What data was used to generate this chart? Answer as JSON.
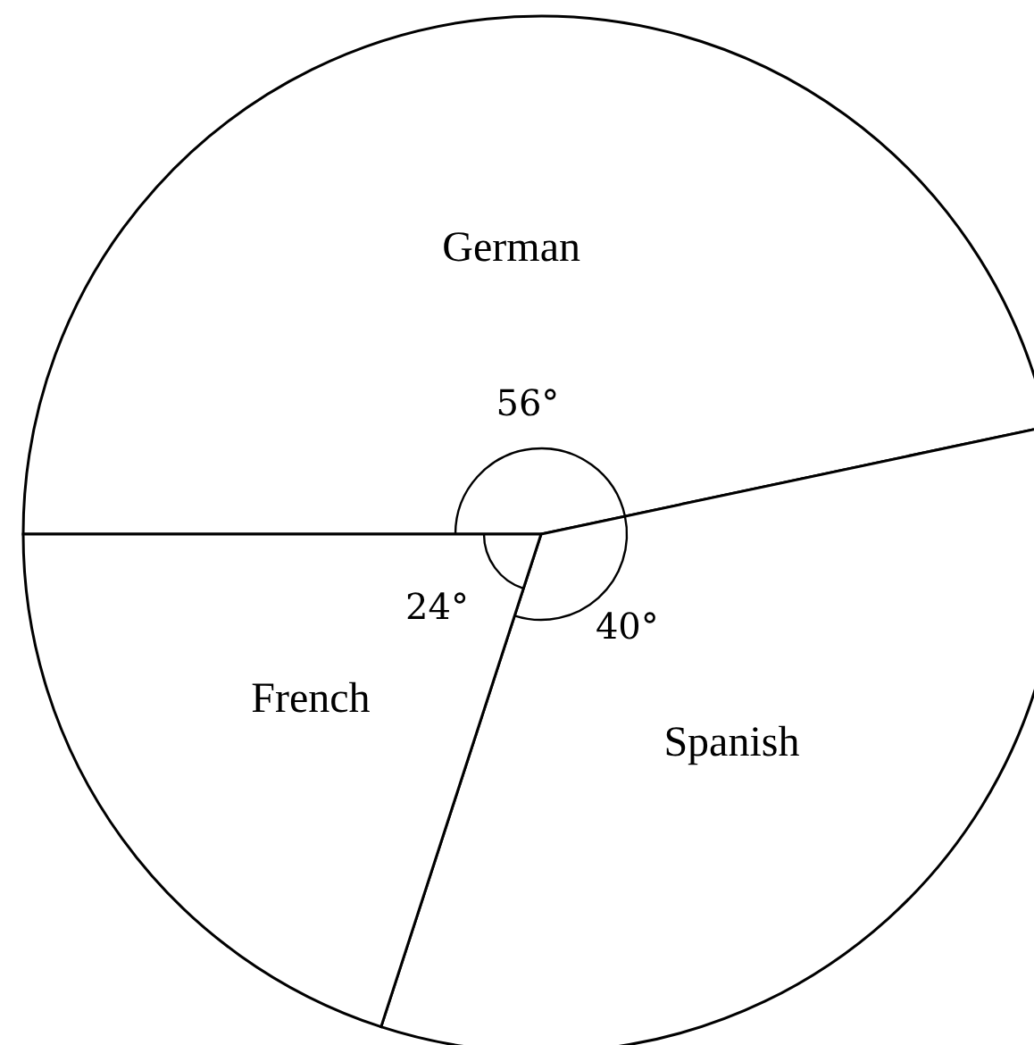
{
  "chart_data": {
    "type": "pie",
    "categories": [
      "German",
      "Spanish",
      "French"
    ],
    "values": [
      56,
      40,
      24
    ],
    "colors": [
      "#ffffff",
      "#ffffff",
      "#ffffff"
    ],
    "value_labels": [
      "56°",
      "40°",
      "24°"
    ]
  }
}
